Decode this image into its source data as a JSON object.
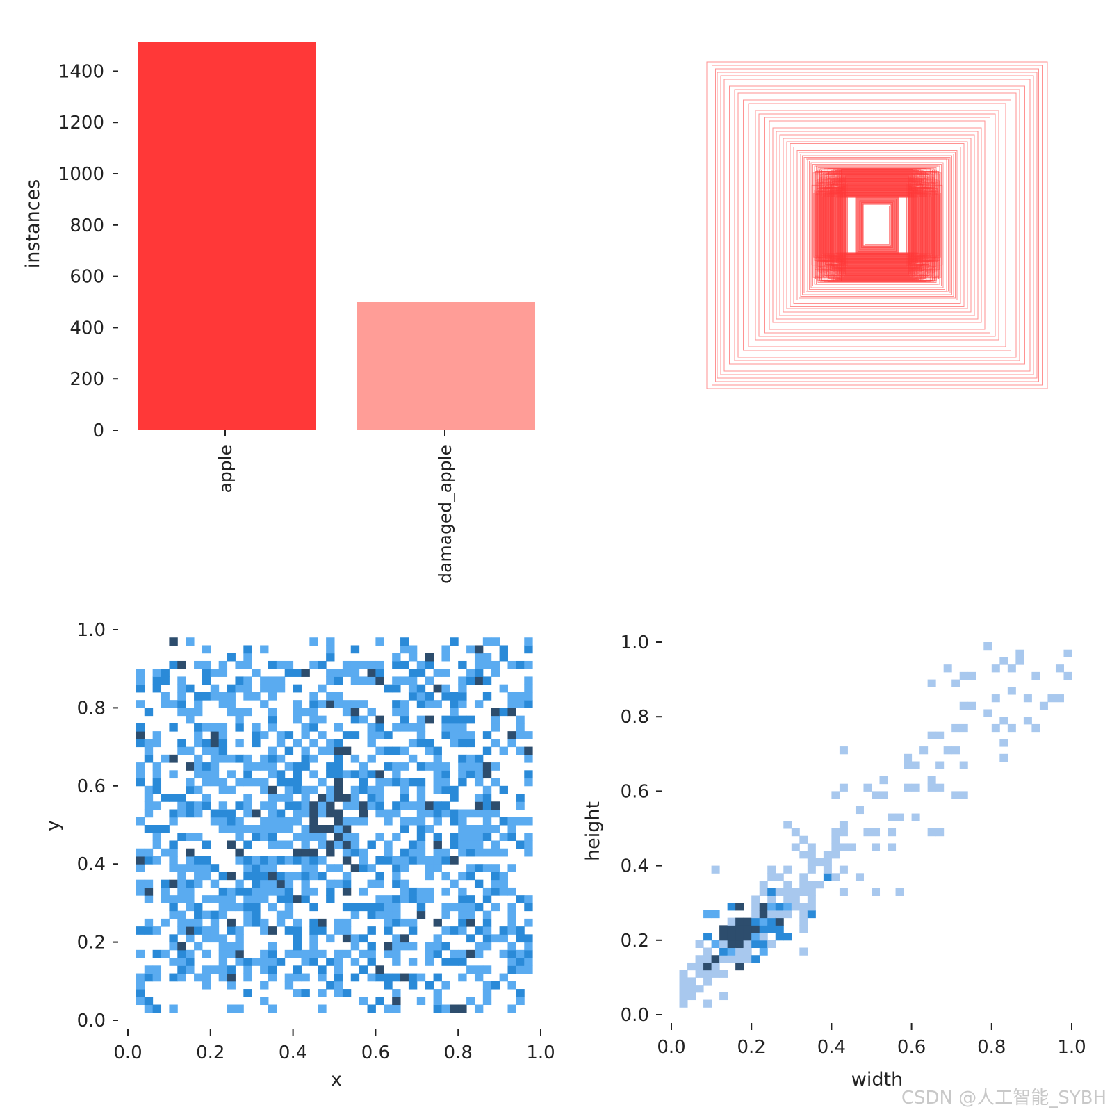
{
  "colors": {
    "apple": "#ff3838",
    "damaged_apple": "#ff9d97",
    "box_stroke": "#ff3838",
    "hist_light": "#a8c8ee",
    "hist_mid": "#5aabf0",
    "hist_dark": "#2a8ad8",
    "hist_darkest": "#2d4d6d",
    "tick": "#222222"
  },
  "watermark": "CSDN @人工智能_SYBH",
  "chart_data": [
    {
      "type": "bar",
      "categories": [
        "apple",
        "damaged_apple"
      ],
      "values": [
        1515,
        500
      ],
      "ylabel": "instances",
      "xlabel": "",
      "ylim": [
        0,
        1515
      ],
      "yticks": [
        "0",
        "200",
        "400",
        "600",
        "800",
        "1000",
        "1200",
        "1400"
      ],
      "grid": false
    },
    {
      "type": "scatter",
      "kind": "overlaid bounding boxes centered at origin",
      "boxes_wh": [
        [
          0.98,
          0.94
        ],
        [
          0.95,
          0.92
        ],
        [
          0.93,
          0.9
        ],
        [
          0.92,
          0.88
        ],
        [
          0.9,
          0.86
        ],
        [
          0.88,
          0.84
        ],
        [
          0.85,
          0.8
        ],
        [
          0.82,
          0.78
        ],
        [
          0.8,
          0.76
        ],
        [
          0.77,
          0.72
        ],
        [
          0.74,
          0.7
        ],
        [
          0.7,
          0.66
        ],
        [
          0.68,
          0.64
        ],
        [
          0.65,
          0.62
        ],
        [
          0.62,
          0.6
        ],
        [
          0.6,
          0.56
        ],
        [
          0.58,
          0.54
        ],
        [
          0.56,
          0.52
        ],
        [
          0.54,
          0.5
        ],
        [
          0.52,
          0.48
        ],
        [
          0.5,
          0.47
        ],
        [
          0.48,
          0.45
        ],
        [
          0.46,
          0.43
        ],
        [
          0.45,
          0.42
        ],
        [
          0.44,
          0.41
        ],
        [
          0.43,
          0.4
        ],
        [
          0.42,
          0.39
        ],
        [
          0.41,
          0.38
        ],
        [
          0.4,
          0.38
        ],
        [
          0.39,
          0.37
        ],
        [
          0.38,
          0.36
        ],
        [
          0.37,
          0.35
        ],
        [
          0.36,
          0.34
        ],
        [
          0.35,
          0.34
        ],
        [
          0.34,
          0.33
        ],
        [
          0.33,
          0.32
        ],
        [
          0.32,
          0.31
        ],
        [
          0.31,
          0.3
        ],
        [
          0.3,
          0.29
        ],
        [
          0.29,
          0.28
        ],
        [
          0.28,
          0.27
        ],
        [
          0.27,
          0.26
        ],
        [
          0.26,
          0.25
        ],
        [
          0.25,
          0.24
        ],
        [
          0.24,
          0.23
        ],
        [
          0.23,
          0.22
        ],
        [
          0.22,
          0.21
        ],
        [
          0.21,
          0.2
        ],
        [
          0.2,
          0.19
        ],
        [
          0.19,
          0.18
        ],
        [
          0.18,
          0.17
        ],
        [
          0.11,
          0.15
        ],
        [
          0.1,
          0.14
        ],
        [
          0.09,
          0.13
        ],
        [
          0.08,
          0.12
        ],
        [
          0.07,
          0.11
        ]
      ]
    },
    {
      "type": "heatmap",
      "xlabel": "x",
      "ylabel": "y",
      "xlim": [
        0,
        1
      ],
      "ylim": [
        0,
        1
      ],
      "xticks": [
        "0.0",
        "0.2",
        "0.4",
        "0.6",
        "0.8",
        "1.0"
      ],
      "yticks": [
        "0.0",
        "0.2",
        "0.4",
        "0.6",
        "0.8",
        "1.0"
      ],
      "bins": 50,
      "density": "roughly uniform over x 0.02-0.98, y 0.02-0.97, with a dense cluster near (0.5, 0.5)"
    },
    {
      "type": "heatmap",
      "xlabel": "width",
      "ylabel": "height",
      "xlim": [
        0,
        1
      ],
      "ylim": [
        0,
        1
      ],
      "xticks": [
        "0.0",
        "0.2",
        "0.4",
        "0.6",
        "0.8",
        "1.0"
      ],
      "yticks": [
        "0.0",
        "0.2",
        "0.4",
        "0.6",
        "0.8",
        "1.0"
      ],
      "bins": 50,
      "density": "strong positive correlation, densest near width 0.18, height 0.22, spreading to (1.0, 1.0)"
    }
  ]
}
